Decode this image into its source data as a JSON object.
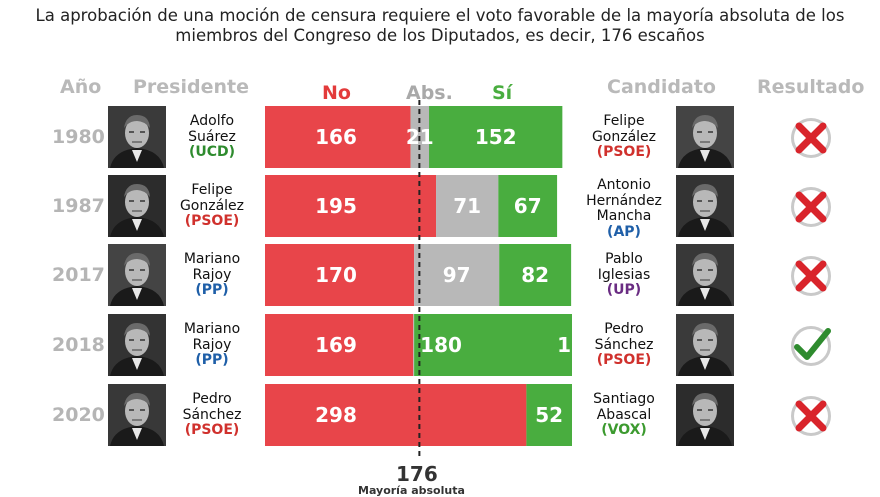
{
  "title": "La aprobación de una moción de censura requiere el voto favorable de la mayoría absoluta de los miembros del Congreso de los Diputados, es decir, 176 escaños",
  "headers": {
    "year": "Año",
    "president": "Presidente",
    "candidate": "Candidato",
    "result": "Resultado"
  },
  "colors": {
    "no": "#e8454a",
    "abs": "#b8b8b8",
    "si": "#49ad3f",
    "PSOE": "#d0312d",
    "UCD": "#2e8b2e",
    "PP": "#1f5fa8",
    "AP": "#1f5fa8",
    "UP": "#6a2c83",
    "VOX": "#3c9a2f",
    "check": "#2e8b2e",
    "cross": "#d9242b"
  },
  "chart_data": {
    "type": "bar",
    "stacked": true,
    "orientation": "horizontal",
    "title": "La aprobación de una moción de censura requiere el voto favorable de la mayoría absoluta de los miembros del Congreso de los Diputados, es decir, 176 escaños",
    "categories": [
      "1980",
      "1987",
      "2017",
      "2018",
      "2020"
    ],
    "series": [
      {
        "name": "No",
        "values": [
          166,
          195,
          170,
          169,
          298
        ]
      },
      {
        "name": "Abs.",
        "values": [
          21,
          71,
          97,
          1,
          0
        ]
      },
      {
        "name": "Sí",
        "values": [
          152,
          67,
          82,
          180,
          52
        ]
      }
    ],
    "xlim": [
      0,
      350
    ],
    "reference_line": {
      "value": 176,
      "label_value": "176",
      "label": "Mayoría absoluta"
    }
  },
  "rows": [
    {
      "year": "1980",
      "president": {
        "name": [
          "Adolfo",
          "Suárez"
        ],
        "party": "(UCD)",
        "party_key": "UCD"
      },
      "candidate": {
        "name": [
          "Felipe",
          "González"
        ],
        "party": "(PSOE)",
        "party_key": "PSOE"
      },
      "labels": {
        "no": "166",
        "abs": "21",
        "si": "152"
      },
      "passed": false
    },
    {
      "year": "1987",
      "president": {
        "name": [
          "Felipe",
          "González"
        ],
        "party": "(PSOE)",
        "party_key": "PSOE"
      },
      "candidate": {
        "name": [
          "Antonio",
          "Hernández",
          "Mancha"
        ],
        "party": "(AP)",
        "party_key": "AP"
      },
      "labels": {
        "no": "195",
        "abs": "71",
        "si": "67"
      },
      "passed": false
    },
    {
      "year": "2017",
      "president": {
        "name": [
          "Mariano",
          "Rajoy"
        ],
        "party": "(PP)",
        "party_key": "PP"
      },
      "candidate": {
        "name": [
          "Pablo",
          "Iglesias"
        ],
        "party": "(UP)",
        "party_key": "UP"
      },
      "labels": {
        "no": "170",
        "abs": "97",
        "si": "82"
      },
      "passed": false
    },
    {
      "year": "2018",
      "president": {
        "name": [
          "Mariano",
          "Rajoy"
        ],
        "party": "(PP)",
        "party_key": "PP"
      },
      "candidate": {
        "name": [
          "Pedro",
          "Sánchez"
        ],
        "party": "(PSOE)",
        "party_key": "PSOE"
      },
      "labels": {
        "no": "169",
        "si": "180",
        "abs": "1"
      },
      "passed": true
    },
    {
      "year": "2020",
      "president": {
        "name": [
          "Pedro",
          "Sánchez"
        ],
        "party": "(PSOE)",
        "party_key": "PSOE"
      },
      "candidate": {
        "name": [
          "Santiago",
          "Abascal"
        ],
        "party": "(VOX)",
        "party_key": "VOX"
      },
      "labels": {
        "no": "298",
        "si": "52"
      },
      "passed": false
    }
  ]
}
